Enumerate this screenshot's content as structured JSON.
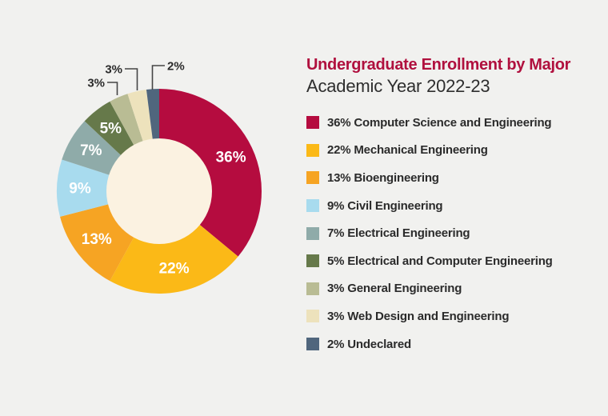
{
  "page": {
    "background": "#F1F1EF"
  },
  "header": {
    "title": "Undergraduate Enrollment by Major",
    "subtitle": "Academic Year 2022-23",
    "title_color": "#B0103E",
    "subtitle_color": "#2E2E2E"
  },
  "chart_data": {
    "type": "pie",
    "donut": true,
    "title": "Undergraduate Enrollment by Major",
    "subtitle": "Academic Year 2022-23",
    "start_angle_deg": 0,
    "direction": "clockwise",
    "hole_color": "#FBF2E1",
    "inside_label_color": "#FFFFFF",
    "callout_label_color": "#2B2B2B",
    "callout_line_color": "#454545",
    "slices": [
      {
        "label": "Computer Science and Engineering",
        "value_pct": 36,
        "color": "#B50C3F",
        "label_placement": "inside"
      },
      {
        "label": "Mechanical Engineering",
        "value_pct": 22,
        "color": "#FBB917",
        "label_placement": "inside"
      },
      {
        "label": "Bioengineering",
        "value_pct": 13,
        "color": "#F6A423",
        "label_placement": "inside"
      },
      {
        "label": "Civil Engineering",
        "value_pct": 9,
        "color": "#A8DBEE",
        "label_placement": "inside"
      },
      {
        "label": "Electrical Engineering",
        "value_pct": 7,
        "color": "#8FABA9",
        "label_placement": "inside"
      },
      {
        "label": "Electrical and Computer Engineering",
        "value_pct": 5,
        "color": "#66794A",
        "label_placement": "inside"
      },
      {
        "label": "General Engineering",
        "value_pct": 3,
        "color": "#B9BC94",
        "label_placement": "callout"
      },
      {
        "label": "Web Design and Engineering",
        "value_pct": 3,
        "color": "#EDE2BC",
        "label_placement": "callout"
      },
      {
        "label": "Undeclared",
        "value_pct": 2,
        "color": "#50667D",
        "label_placement": "callout"
      }
    ],
    "legend_position": "right",
    "legend_label_format": "{pct}% {name}"
  }
}
